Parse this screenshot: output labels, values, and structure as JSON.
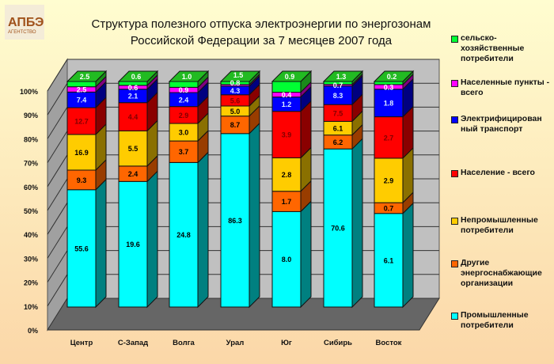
{
  "logo": {
    "text": "АПБЭ",
    "subtext": "АГЕНТСТВО"
  },
  "chart_data": {
    "type": "bar",
    "stacked": "percent",
    "title_lines": [
      "Структура полезного отпуска электроэнергии по энергозонам",
      "Российской Федерации за 7 месяцев 2007 года"
    ],
    "categories": [
      "Центр",
      "С-Запад",
      "Волга",
      "Урал",
      "Юг",
      "Сибирь",
      "Восток"
    ],
    "ylim": [
      0,
      100
    ],
    "yticks": [
      "0%",
      "10%",
      "20%",
      "30%",
      "40%",
      "50%",
      "60%",
      "70%",
      "80%",
      "90%",
      "100%"
    ],
    "legend_position": "right",
    "series": [
      {
        "name": "Промышленные потребители",
        "color": "#00ffff",
        "side": "#008080",
        "label_color": "#000",
        "values": [
          55.6,
          19.6,
          24.8,
          86.3,
          8.0,
          70.6,
          6.1
        ]
      },
      {
        "name": "Другие энергоснабжающие организации",
        "color": "#ff6600",
        "side": "#993d00",
        "label_color": "#000",
        "values": [
          9.3,
          2.4,
          3.7,
          8.7,
          1.7,
          6.2,
          0.7
        ]
      },
      {
        "name": "Непромышленные потребители",
        "color": "#ffcc00",
        "side": "#8a7000",
        "label_color": "#000",
        "values": [
          16.9,
          5.5,
          3.0,
          5.0,
          2.8,
          6.1,
          2.9
        ]
      },
      {
        "name": "Население - всего",
        "color": "#ff0000",
        "side": "#8a0000",
        "label_color": "#800000",
        "values": [
          12.7,
          4.4,
          2.9,
          5.6,
          3.9,
          7.5,
          2.7
        ]
      },
      {
        "name": "Электрифицирован ный транспорт",
        "color": "#0000ff",
        "side": "#000080",
        "label_color": "#ddeeff",
        "values": [
          7.4,
          2.1,
          2.4,
          4.3,
          1.2,
          8.3,
          1.8
        ]
      },
      {
        "name": "Населенные пункты - всего",
        "color": "#ff00ff",
        "side": "#800080",
        "label_color": "#fff",
        "values": [
          2.5,
          0.6,
          0.9,
          0.8,
          0.4,
          0.7,
          0.3
        ]
      },
      {
        "name": "сельско- хозяйственные потребители",
        "color": "#00ff33",
        "side": "#1a8a1a",
        "label_color": "#fff",
        "values": [
          2.5,
          0.6,
          1.0,
          1.5,
          0.9,
          1.3,
          0.2
        ]
      }
    ]
  }
}
